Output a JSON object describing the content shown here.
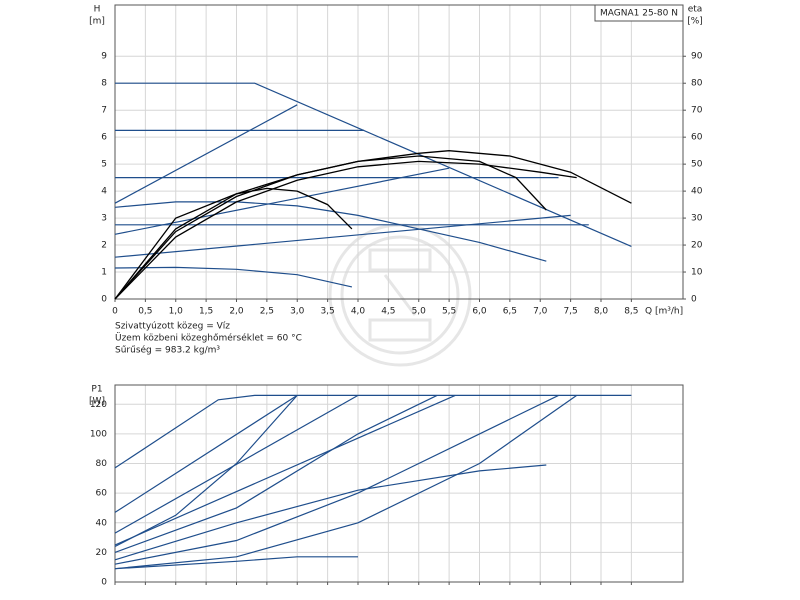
{
  "chart_data": [
    {
      "type": "line",
      "title": "MAGNA1 25-80 N",
      "y_label": "H",
      "y_unit": "[m]",
      "y2_label": "eta",
      "y2_unit": "[%]",
      "x_label": "Q [m³/h]",
      "notes": [
        "Szivattyúzott közeg = Víz",
        "Üzem közbeni közeghőmérséklet = 60 °C",
        "Sűrűség = 983.2 kg/m³"
      ],
      "xlim": [
        0,
        9.35
      ],
      "ylim": [
        0,
        10.9
      ],
      "y2lim": [
        0,
        109
      ],
      "xticks": [
        0,
        {
          "value": 0.5,
          "label": "0,5"
        },
        {
          "value": 1,
          "label": "1,0"
        },
        {
          "value": 1.5,
          "label": "1,5"
        },
        {
          "value": 2,
          "label": "2,0"
        },
        {
          "value": 2.5,
          "label": "2,5"
        },
        {
          "value": 3,
          "label": "3,0"
        },
        {
          "value": 3.5,
          "label": "3,5"
        },
        {
          "value": 4,
          "label": "4,0"
        },
        {
          "value": 4.5,
          "label": "4,5"
        },
        {
          "value": 5,
          "label": "5,0"
        },
        {
          "value": 5.5,
          "label": "5,5"
        },
        {
          "value": 6,
          "label": "6,0"
        },
        {
          "value": 6.5,
          "label": "6,5"
        },
        {
          "value": 7,
          "label": "7,0"
        },
        {
          "value": 7.5,
          "label": "7,5"
        },
        {
          "value": 8,
          "label": "8,0"
        },
        {
          "value": 8.5,
          "label": "8,5"
        }
      ],
      "yticks": [
        0,
        1,
        2,
        3,
        4,
        5,
        6,
        7,
        8,
        9
      ],
      "y2ticks": [
        0,
        10,
        20,
        30,
        40,
        50,
        60,
        70,
        80,
        90
      ],
      "xtick_labels": true,
      "grid": true,
      "series": [
        {
          "color": "#1f4e8c",
          "x": [
            0,
            2.3,
            8.5
          ],
          "values": [
            8,
            8,
            1.95
          ]
        },
        {
          "color": "#1f4e8c",
          "x": [
            0,
            4.1
          ],
          "values": [
            6.25,
            6.25
          ]
        },
        {
          "color": "#1f4e8c",
          "x": [
            0,
            7.3
          ],
          "values": [
            4.5,
            4.5
          ]
        },
        {
          "color": "#1f4e8c",
          "x": [
            0,
            7.8
          ],
          "values": [
            2.75,
            2.75
          ]
        },
        {
          "color": "#1f4e8c",
          "x": [
            0,
            3.0
          ],
          "values": [
            3.55,
            7.2
          ]
        },
        {
          "color": "#1f4e8c",
          "x": [
            0,
            5.5
          ],
          "values": [
            2.4,
            4.85
          ]
        },
        {
          "color": "#1f4e8c",
          "x": [
            0,
            7.5
          ],
          "values": [
            1.55,
            3.1
          ]
        },
        {
          "color": "#1f4e8c",
          "x": [
            0,
            1,
            2,
            3,
            4,
            5,
            6,
            7.1
          ],
          "values": [
            3.4,
            3.6,
            3.6,
            3.45,
            3.1,
            2.6,
            2.1,
            1.4
          ]
        },
        {
          "color": "#1f4e8c",
          "x": [
            0,
            1,
            2,
            3,
            3.9
          ],
          "values": [
            1.15,
            1.17,
            1.1,
            0.9,
            0.45
          ]
        },
        {
          "color": "#000000",
          "axis": "y2",
          "x": [
            0,
            1,
            2,
            3,
            4,
            5,
            5.5,
            6.5,
            7.5,
            8.5
          ],
          "values": [
            0,
            25,
            38,
            46,
            51,
            54,
            55,
            53,
            47,
            35.5
          ]
        },
        {
          "color": "#000000",
          "axis": "y2",
          "x": [
            0,
            1,
            2,
            3,
            4,
            5,
            6,
            6.6,
            7.1
          ],
          "values": [
            0,
            26,
            39,
            46,
            51,
            53,
            51,
            45,
            33
          ]
        },
        {
          "color": "#000000",
          "axis": "y2",
          "x": [
            0,
            1,
            2,
            3,
            4,
            5,
            6,
            7,
            7.6
          ],
          "values": [
            0,
            23,
            36,
            44,
            49,
            51,
            50,
            47,
            45
          ]
        },
        {
          "color": "#000000",
          "axis": "y2",
          "x": [
            0,
            1,
            2,
            2.5,
            3,
            3.5,
            3.9
          ],
          "values": [
            0,
            30,
            39,
            41,
            40,
            35,
            26
          ]
        }
      ]
    },
    {
      "type": "line",
      "y_label": "P1",
      "y_unit": "[W]",
      "xlim": [
        0,
        9.35
      ],
      "ylim": [
        0,
        133
      ],
      "xticks": [
        0,
        0.5,
        1,
        1.5,
        2,
        2.5,
        3,
        3.5,
        4,
        4.5,
        5,
        5.5,
        6,
        6.5,
        7,
        7.5,
        8,
        8.5
      ],
      "yticks": [
        0,
        20,
        40,
        60,
        80,
        100,
        120
      ],
      "xtick_labels": false,
      "grid": true,
      "series": [
        {
          "color": "#1f4e8c",
          "x": [
            0,
            1.7,
            2.3,
            8.5
          ],
          "values": [
            77,
            123,
            126,
            126
          ]
        },
        {
          "color": "#1f4e8c",
          "x": [
            0,
            3.0
          ],
          "values": [
            47,
            126
          ]
        },
        {
          "color": "#1f4e8c",
          "x": [
            0,
            1,
            2,
            3
          ],
          "values": [
            24,
            45,
            80,
            126
          ]
        },
        {
          "color": "#1f4e8c",
          "x": [
            0,
            4
          ],
          "values": [
            33,
            126
          ]
        },
        {
          "color": "#1f4e8c",
          "x": [
            0,
            2,
            4,
            5.3
          ],
          "values": [
            20,
            50,
            100,
            126
          ]
        },
        {
          "color": "#1f4e8c",
          "x": [
            0,
            5.6
          ],
          "values": [
            25,
            126
          ]
        },
        {
          "color": "#1f4e8c",
          "x": [
            0,
            2,
            4,
            6,
            7.3
          ],
          "values": [
            12,
            28,
            60,
            100,
            126
          ]
        },
        {
          "color": "#1f4e8c",
          "x": [
            0,
            2,
            4,
            6,
            7.6
          ],
          "values": [
            9,
            17,
            40,
            80,
            126
          ]
        },
        {
          "color": "#1f4e8c",
          "x": [
            0,
            2,
            4,
            6,
            7.1
          ],
          "values": [
            15,
            40,
            62,
            75,
            79
          ]
        },
        {
          "color": "#1f4e8c",
          "x": [
            0,
            2,
            3,
            4
          ],
          "values": [
            9,
            14,
            17,
            17
          ]
        }
      ]
    }
  ]
}
